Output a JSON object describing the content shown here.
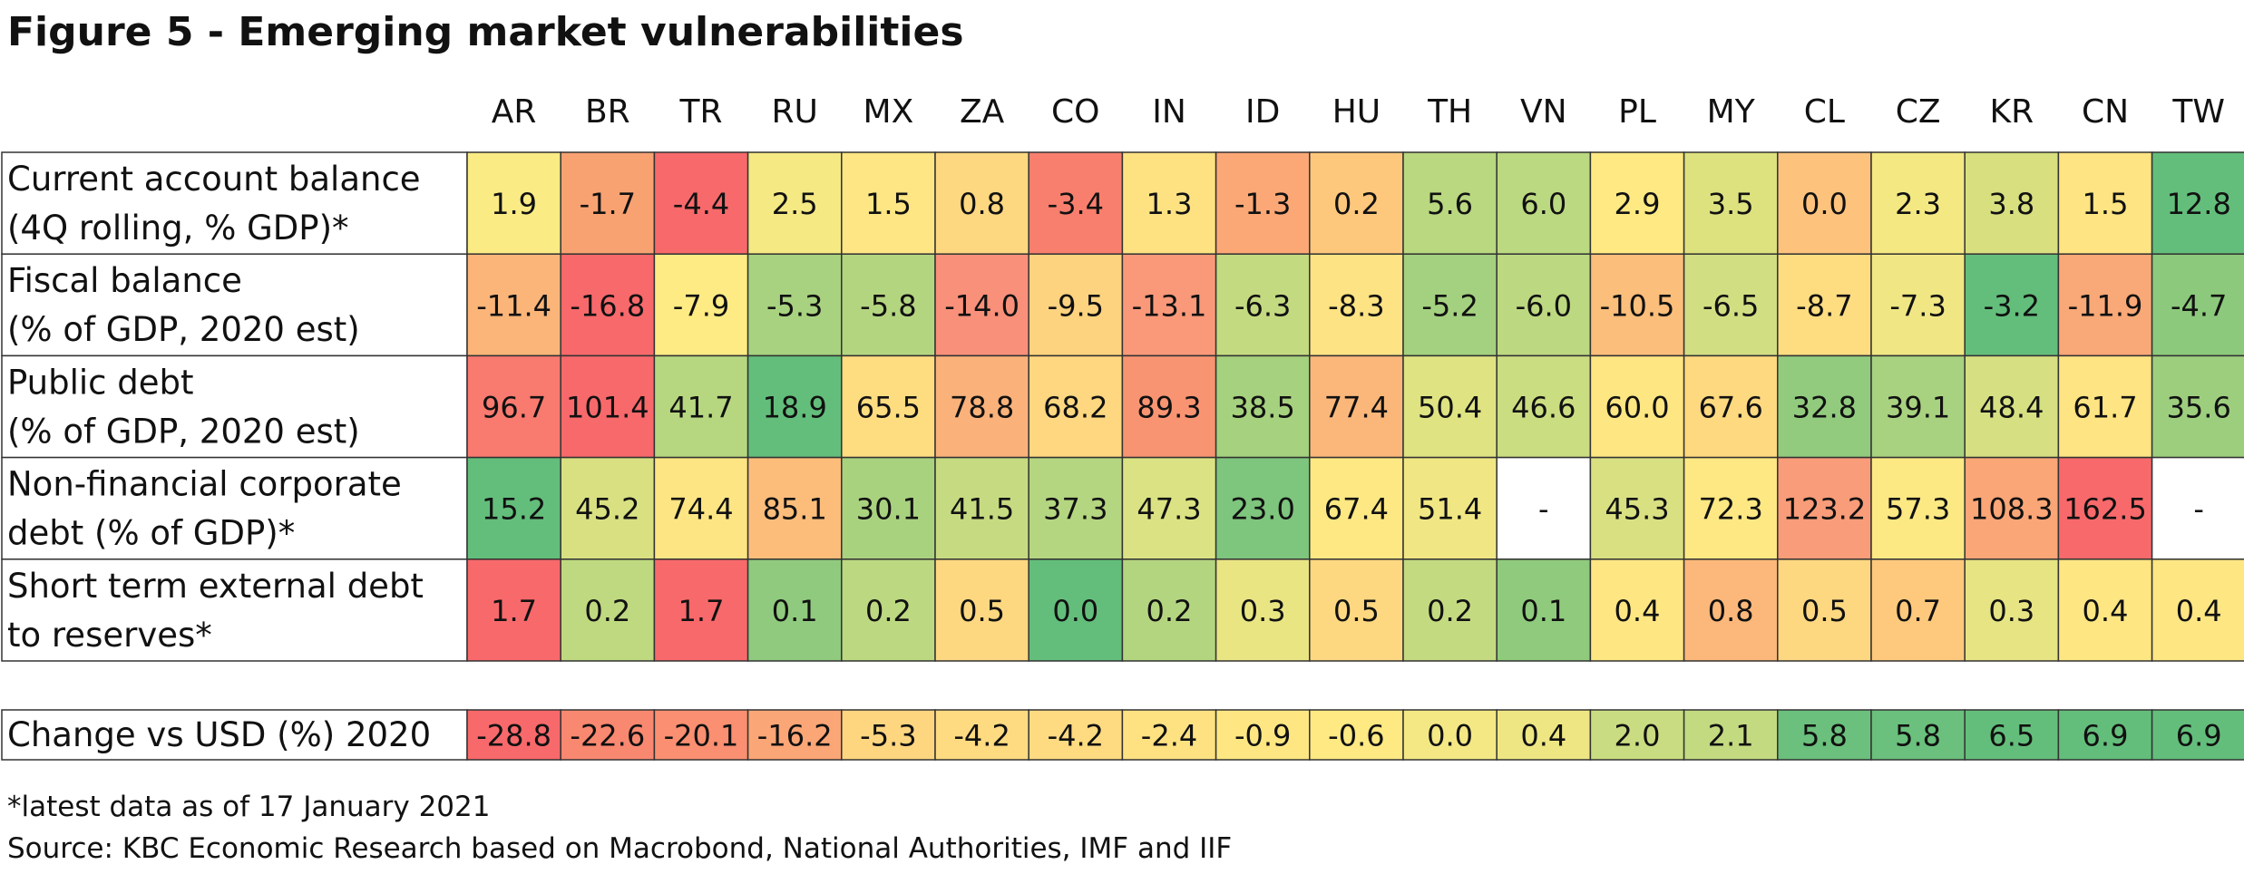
{
  "chart_data": {
    "type": "heatmap",
    "title": "Figure 5 - Emerging market vulnerabilities",
    "columns": [
      "AR",
      "BR",
      "TR",
      "RU",
      "MX",
      "ZA",
      "CO",
      "IN",
      "ID",
      "HU",
      "TH",
      "VN",
      "PL",
      "MY",
      "CL",
      "CZ",
      "KR",
      "CN",
      "TW"
    ],
    "rows": [
      {
        "label_lines": [
          "Current account balance",
          "(4Q rolling, % GDP)*"
        ],
        "values": [
          "1.9",
          "-1.7",
          "-4.4",
          "2.5",
          "1.5",
          "0.8",
          "-3.4",
          "1.3",
          "-1.3",
          "0.2",
          "5.6",
          "6.0",
          "2.9",
          "3.5",
          "0.0",
          "2.3",
          "3.8",
          "1.5",
          "12.8"
        ],
        "colors": [
          "#fbeb84",
          "#f8a272",
          "#f8696b",
          "#f5e984",
          "#fde683",
          "#fed880",
          "#f87f6e",
          "#fee282",
          "#fba876",
          "#fec87c",
          "#b9d880",
          "#bbd981",
          "#fee983",
          "#dde27f",
          "#fdc37d",
          "#f4e883",
          "#d7df7f",
          "#fee482",
          "#63be7b"
        ]
      },
      {
        "label_lines": [
          "Fiscal balance",
          "(% of GDP, 2020 est)"
        ],
        "values": [
          "-11.4",
          "-16.8",
          "-7.9",
          "-5.3",
          "-5.8",
          "-14.0",
          "-9.5",
          "-13.1",
          "-6.3",
          "-8.3",
          "-5.2",
          "-6.0",
          "-10.5",
          "-6.5",
          "-8.7",
          "-7.3",
          "-3.2",
          "-11.9",
          "-4.7"
        ],
        "colors": [
          "#fbb579",
          "#f8696b",
          "#feeb84",
          "#a8d27f",
          "#b4d580",
          "#f9907a",
          "#fed37f",
          "#f9997a",
          "#c4da81",
          "#fde383",
          "#a4d17f",
          "#bcd881",
          "#fbbe7b",
          "#d2de82",
          "#fedd81",
          "#f0e784",
          "#63be7b",
          "#f9a877",
          "#8dc97c"
        ]
      },
      {
        "label_lines": [
          "Public debt",
          "(% of GDP, 2020 est)"
        ],
        "values": [
          "96.7",
          "101.4",
          "41.7",
          "18.9",
          "65.5",
          "78.8",
          "68.2",
          "89.3",
          "38.5",
          "77.4",
          "50.4",
          "46.6",
          "60.0",
          "67.6",
          "32.8",
          "39.1",
          "48.4",
          "61.7",
          "35.6"
        ],
        "colors": [
          "#f97a6f",
          "#f8696b",
          "#b6d780",
          "#63be7b",
          "#fedc80",
          "#fab27a",
          "#fed780",
          "#f99472",
          "#a6d17e",
          "#fbb77a",
          "#dfe382",
          "#cbdd81",
          "#fee682",
          "#fed97f",
          "#92cb7e",
          "#a8d27f",
          "#d6e082",
          "#fee482",
          "#9dce7e"
        ]
      },
      {
        "label_lines": [
          "Non-financial corporate",
          "debt (% of GDP)*"
        ],
        "values": [
          "15.2",
          "45.2",
          "74.4",
          "85.1",
          "30.1",
          "41.5",
          "37.3",
          "47.3",
          "23.0",
          "67.4",
          "51.4",
          "-",
          "45.3",
          "72.3",
          "123.2",
          "57.3",
          "108.3",
          "162.5",
          "-"
        ],
        "colors": [
          "#63be7b",
          "#d9e082",
          "#fde583",
          "#fcbd7b",
          "#a9d27f",
          "#c6db81",
          "#b5d680",
          "#dbe283",
          "#7ec57d",
          "#fee883",
          "#f0e784",
          "#ffffff",
          "#d9e082",
          "#fee883",
          "#f99c79",
          "#fde983",
          "#fba677",
          "#f8696b",
          "#ffffff"
        ]
      },
      {
        "label_lines": [
          "Short term external debt",
          "to reserves*"
        ],
        "values": [
          "1.7",
          "0.2",
          "1.7",
          "0.1",
          "0.2",
          "0.5",
          "0.0",
          "0.2",
          "0.3",
          "0.5",
          "0.2",
          "0.1",
          "0.4",
          "0.8",
          "0.5",
          "0.7",
          "0.3",
          "0.4",
          "0.4"
        ],
        "colors": [
          "#f8696b",
          "#bfd980",
          "#f8696b",
          "#90ca7e",
          "#bcd881",
          "#fed880",
          "#63be7b",
          "#b4d580",
          "#e9e583",
          "#fed880",
          "#c4da81",
          "#8fca7d",
          "#fee683",
          "#fbb87a",
          "#fed880",
          "#fec97c",
          "#e6e483",
          "#fee683",
          "#fee683"
        ]
      }
    ],
    "summary_row": {
      "label": "Change vs USD (%) 2020",
      "values": [
        "-28.8",
        "-22.6",
        "-20.1",
        "-16.2",
        "-5.3",
        "-4.2",
        "-4.2",
        "-2.4",
        "-0.9",
        "-0.6",
        "0.0",
        "0.4",
        "2.0",
        "2.1",
        "5.8",
        "5.8",
        "6.5",
        "6.9",
        "6.9"
      ],
      "colors": [
        "#f8696b",
        "#f98870",
        "#fa8f71",
        "#fba676",
        "#fed680",
        "#fedb81",
        "#fedb81",
        "#fee282",
        "#fee782",
        "#fee983",
        "#f3e884",
        "#eee683",
        "#c9dc81",
        "#c3da81",
        "#6ac07c",
        "#6ac07c",
        "#64be7b",
        "#63be7b",
        "#63be7b"
      ]
    },
    "footnote": "*latest data as of 17 January 2021",
    "source": "Source: KBC Economic Research based on Macrobond, National Authorities, IMF and IIF"
  }
}
